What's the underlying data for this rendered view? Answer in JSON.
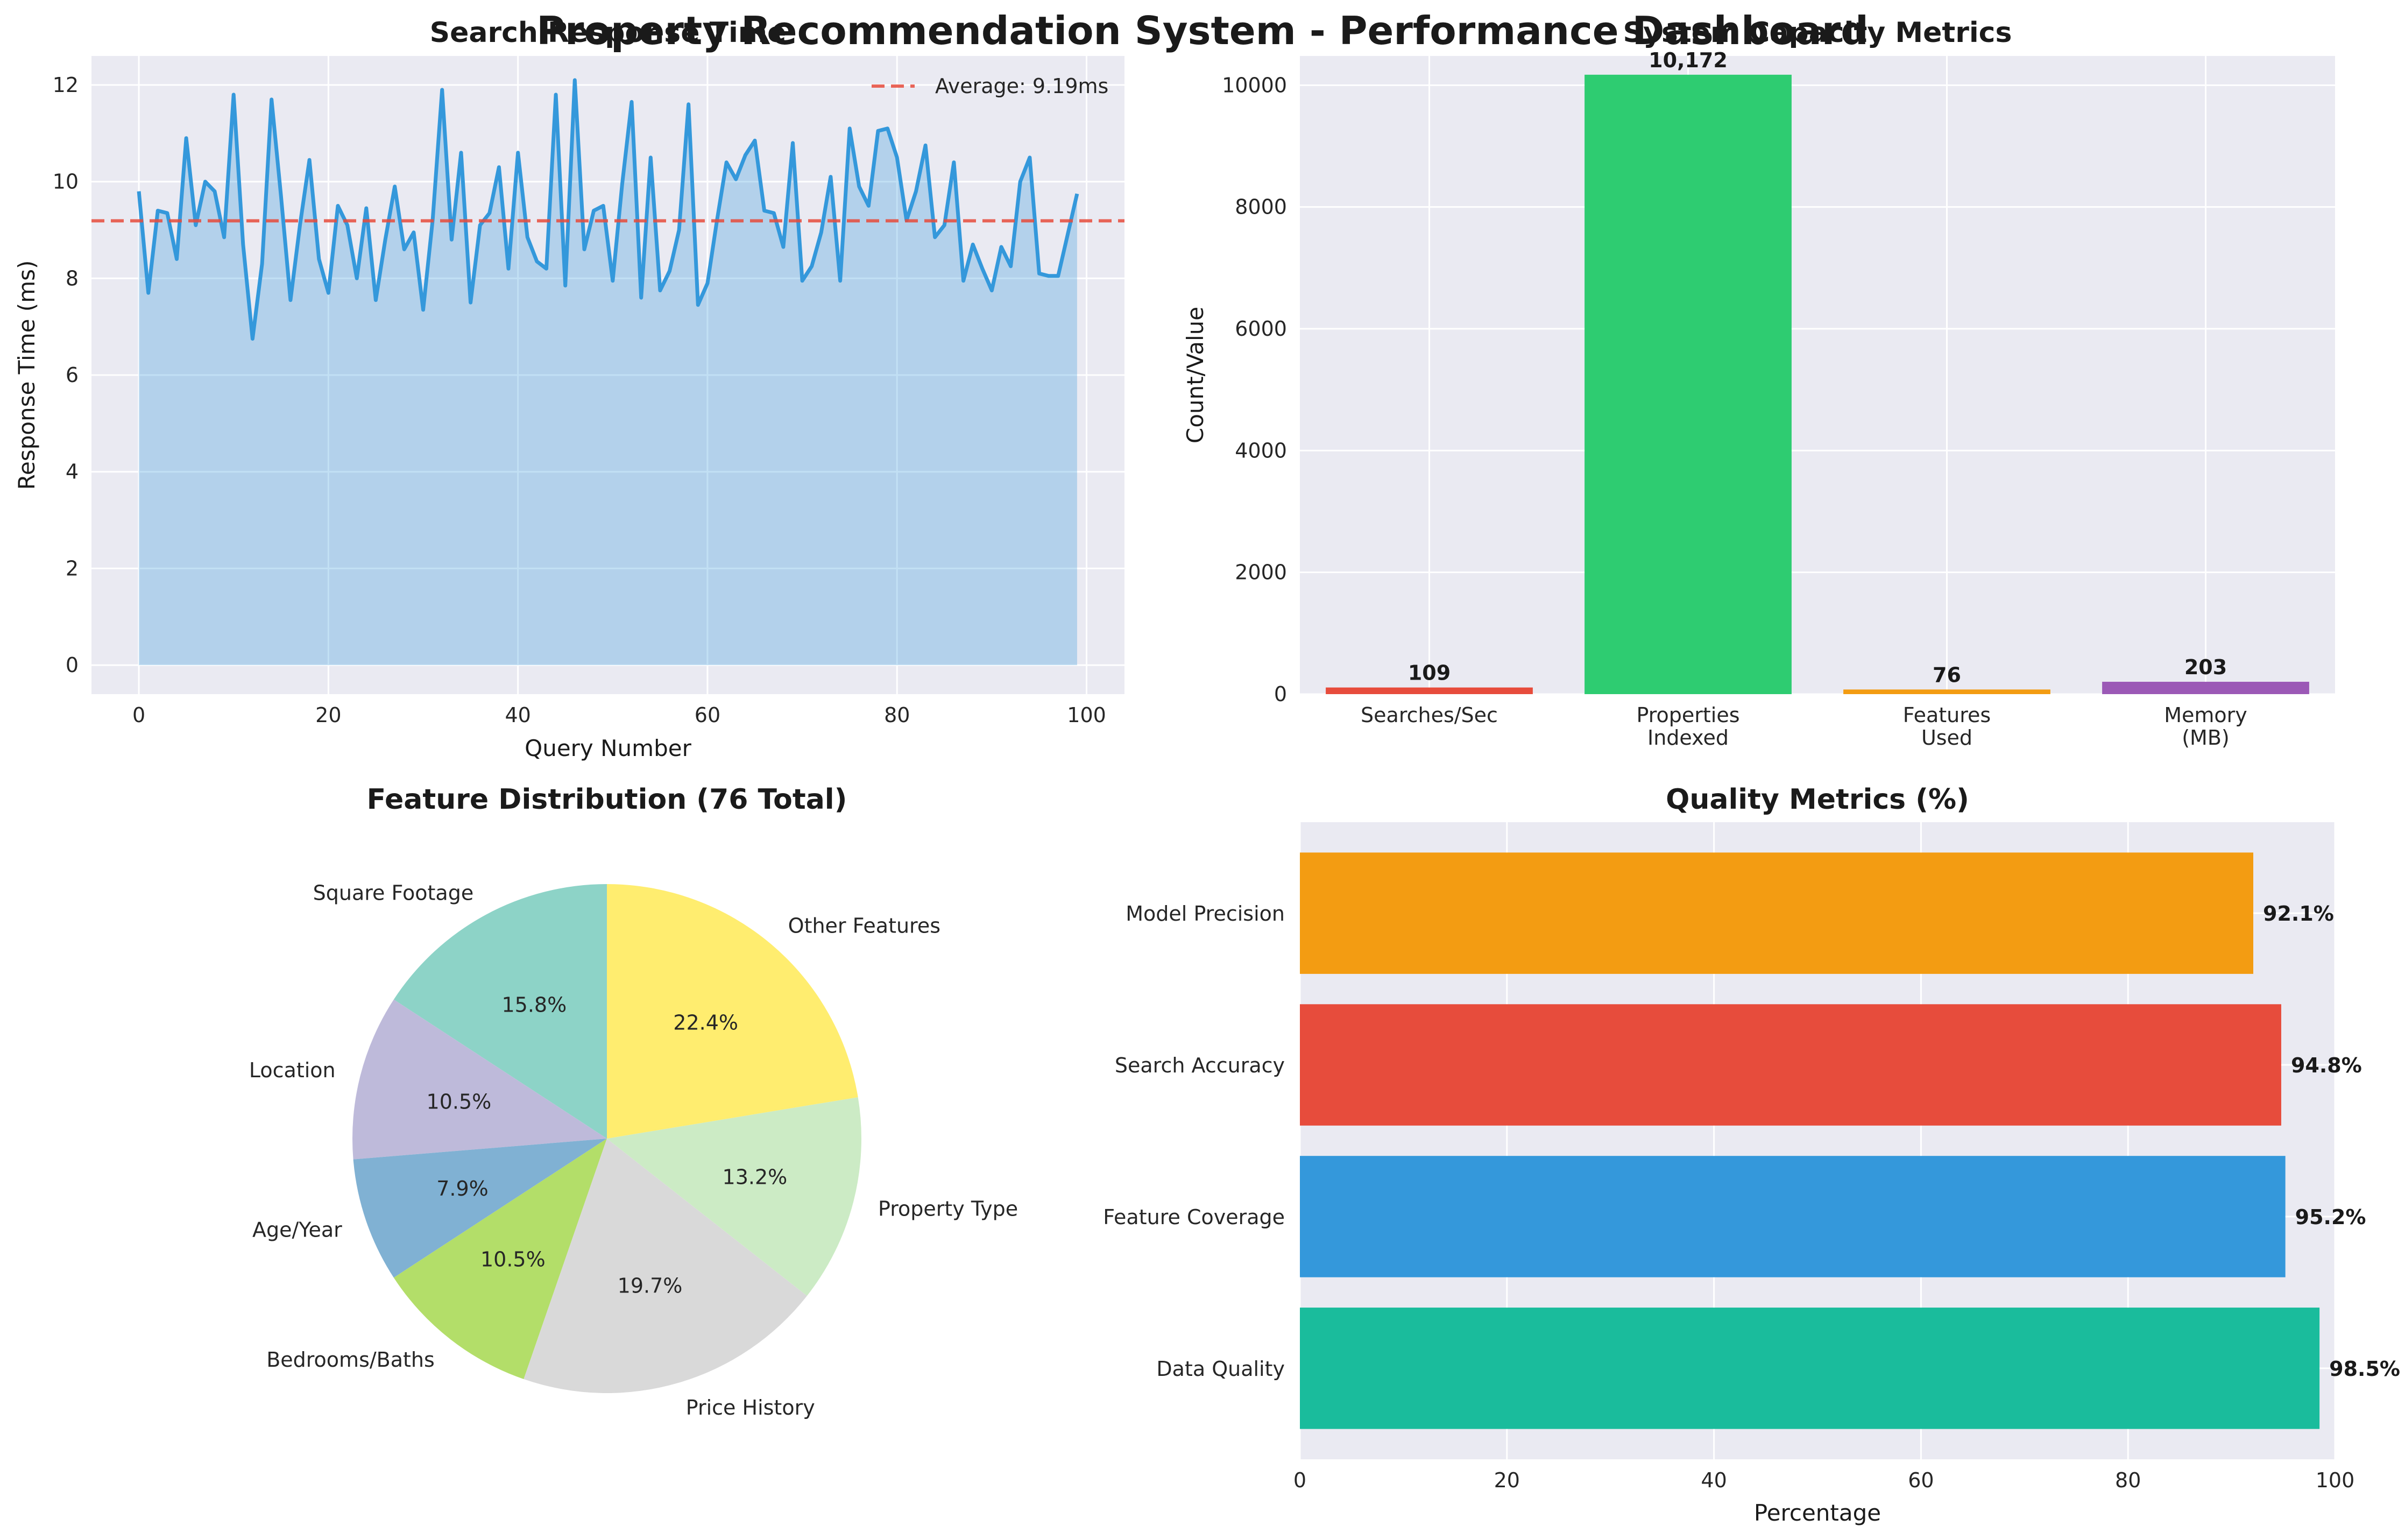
{
  "suptitle": "Property Recommendation System - Performance Dashboard",
  "chart_data": [
    {
      "type": "area",
      "title": "Search Response Time",
      "xlabel": "Query Number",
      "ylabel": "Response Time (ms)",
      "xlim": [
        -5,
        104
      ],
      "ylim": [
        -0.6,
        12.6
      ],
      "xticks": [
        0,
        20,
        40,
        60,
        80,
        100
      ],
      "yticks": [
        0,
        2,
        4,
        6,
        8,
        10,
        12
      ],
      "grid": true,
      "legend_position": "upper right",
      "series": [
        {
          "color": "#3498db",
          "x_start": 0,
          "values": [
            9.8,
            7.7,
            9.4,
            9.35,
            8.4,
            10.9,
            9.1,
            10.0,
            9.8,
            8.85,
            11.8,
            8.7,
            6.75,
            8.3,
            11.7,
            9.7,
            7.55,
            9.1,
            10.45,
            8.4,
            7.7,
            9.5,
            9.1,
            8.0,
            9.45,
            7.55,
            8.8,
            9.9,
            8.6,
            8.95,
            7.35,
            9.2,
            11.9,
            8.8,
            10.6,
            7.5,
            9.1,
            9.35,
            10.3,
            8.2,
            10.6,
            8.85,
            8.35,
            8.2,
            11.8,
            7.85,
            12.1,
            8.6,
            9.4,
            9.5,
            7.95,
            9.95,
            11.65,
            7.6,
            10.5,
            7.75,
            8.15,
            9.0,
            11.6,
            7.45,
            7.9,
            9.2,
            10.4,
            10.05,
            10.55,
            10.85,
            9.4,
            9.35,
            8.65,
            10.8,
            7.95,
            8.25,
            8.95,
            10.1,
            7.95,
            11.1,
            9.9,
            9.5,
            11.05,
            11.1,
            10.5,
            9.2,
            9.8,
            10.75,
            8.85,
            9.1,
            10.4,
            7.95,
            8.7,
            8.2,
            7.75,
            8.65,
            8.25,
            10.0,
            10.5,
            8.1,
            8.05,
            8.05,
            8.9,
            9.75
          ]
        }
      ],
      "average_line": {
        "value": 9.19,
        "label": "Average: 9.19ms",
        "color": "#e74c3c"
      }
    },
    {
      "type": "bar",
      "title": "System Capacity Metrics",
      "xlabel": "",
      "ylabel": "Count/Value",
      "ylim": [
        0,
        10480
      ],
      "yticks": [
        0,
        2000,
        4000,
        6000,
        8000,
        10000
      ],
      "grid": true,
      "categories": [
        "Searches/Sec",
        "Properties\nIndexed",
        "Features\nUsed",
        "Memory\n(MB)"
      ],
      "values": [
        109,
        10172,
        76,
        203
      ],
      "value_labels": [
        "109",
        "10,172",
        "76",
        "203"
      ],
      "colors": [
        "#e74c3c",
        "#2ecc71",
        "#f39c12",
        "#9b59b6"
      ]
    },
    {
      "type": "pie",
      "title": "Feature Distribution (76 Total)",
      "categories": [
        "Square Footage",
        "Location",
        "Age/Year",
        "Bedrooms/Baths",
        "Price History",
        "Property Type",
        "Other Features"
      ],
      "values": [
        15.8,
        10.5,
        7.9,
        10.5,
        19.7,
        13.2,
        22.4
      ],
      "value_labels": [
        "15.8%",
        "10.5%",
        "7.9%",
        "10.5%",
        "19.7%",
        "13.2%",
        "22.4%"
      ],
      "colors": [
        "#8dd3c7",
        "#bebada",
        "#80b1d3",
        "#b3de69",
        "#d9d9d9",
        "#ccebc5",
        "#ffed6f"
      ],
      "start_angle": 90
    },
    {
      "type": "bar",
      "orientation": "horizontal",
      "title": "Quality Metrics (%)",
      "xlabel": "Percentage",
      "ylabel": "",
      "xlim": [
        0,
        100
      ],
      "xticks": [
        0,
        20,
        40,
        60,
        80,
        100
      ],
      "grid": true,
      "categories": [
        "Data Quality",
        "Feature Coverage",
        "Search Accuracy",
        "Model Precision"
      ],
      "values": [
        98.5,
        95.2,
        94.8,
        92.1
      ],
      "value_labels": [
        "98.5%",
        "95.2%",
        "94.8%",
        "92.1%"
      ],
      "colors": [
        "#1abc9c",
        "#3498db",
        "#e74c3c",
        "#f39c12"
      ]
    }
  ]
}
